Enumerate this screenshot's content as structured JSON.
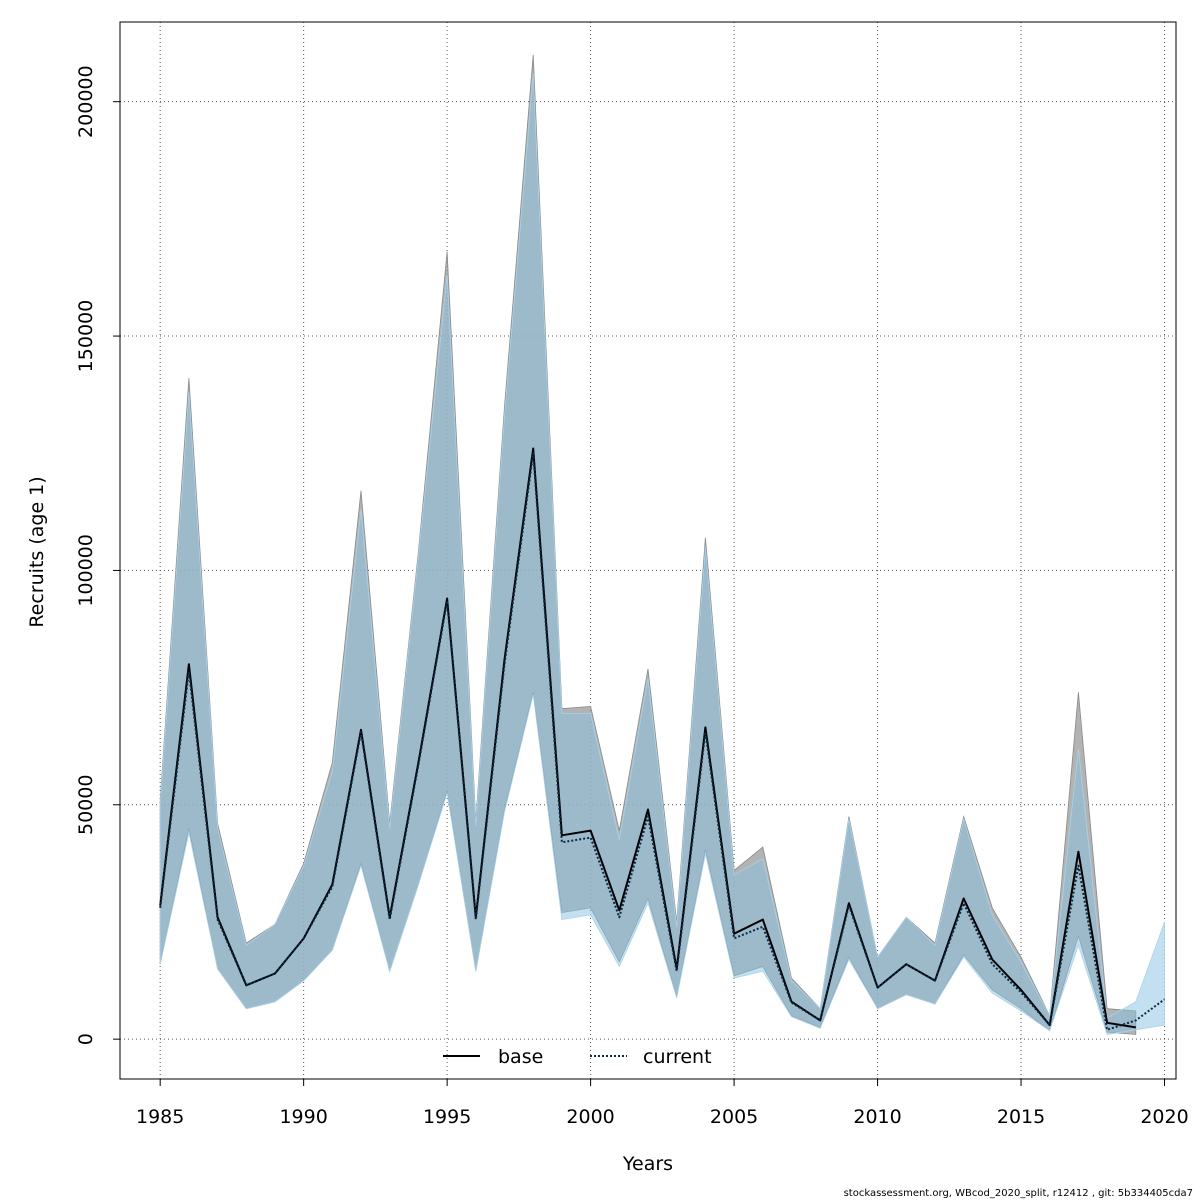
{
  "chart_data": {
    "type": "area",
    "xlabel": "Years",
    "ylabel": "Recruits (age 1)",
    "xlim": [
      1983.6,
      2020.4
    ],
    "ylim": [
      -8500,
      217000
    ],
    "x_ticks": [
      1985,
      1990,
      1995,
      2000,
      2005,
      2010,
      2015,
      2020
    ],
    "x_tick_labels": [
      "1985",
      "1990",
      "1995",
      "2000",
      "2005",
      "2010",
      "2015",
      "2020"
    ],
    "y_ticks": [
      0,
      50000,
      100000,
      150000,
      200000
    ],
    "y_tick_labels": [
      "0",
      "50000",
      "100000",
      "150000",
      "200000"
    ],
    "grid": true,
    "legend_position": "bottom-center",
    "footer": "stockassessment.org, WBcod_2020_split, r12412 , git: 5b334405cda7",
    "series": [
      {
        "name": "base",
        "line_color": "#000000",
        "line_style": "solid",
        "band_color": "#9a9a9a",
        "x": [
          1985,
          1986,
          1987,
          1988,
          1989,
          1990,
          1991,
          1992,
          1993,
          1994,
          1995,
          1996,
          1997,
          1998,
          1999,
          2000,
          2001,
          2002,
          2003,
          2004,
          2005,
          2006,
          2007,
          2008,
          2009,
          2010,
          2011,
          2012,
          2013,
          2014,
          2015,
          2016,
          2017,
          2018,
          2019
        ],
        "values": [
          28500,
          80000,
          26000,
          11500,
          14000,
          21500,
          33000,
          66000,
          26000,
          59000,
          94000,
          26000,
          81000,
          126000,
          43500,
          44500,
          27500,
          49000,
          15000,
          66500,
          22500,
          25500,
          8000,
          4000,
          29000,
          11000,
          16000,
          12500,
          30000,
          17000,
          10500,
          3000,
          40000,
          3500,
          2500
        ],
        "lower": [
          16000,
          45000,
          15000,
          6500,
          8000,
          12500,
          19000,
          37500,
          14500,
          33000,
          53000,
          14500,
          49000,
          74000,
          27000,
          28000,
          16500,
          30000,
          9000,
          40500,
          13500,
          15500,
          5000,
          2500,
          17500,
          6500,
          9500,
          7500,
          18000,
          10500,
          6500,
          1800,
          22000,
          1500,
          1000
        ],
        "upper": [
          51000,
          141000,
          46000,
          20500,
          24500,
          37500,
          59000,
          117000,
          46000,
          104000,
          168000,
          46500,
          135000,
          210000,
          70500,
          71000,
          44500,
          79000,
          25000,
          107000,
          36000,
          41000,
          13000,
          6500,
          47500,
          17500,
          26000,
          20500,
          47500,
          28000,
          17500,
          5000,
          74000,
          6500,
          6000
        ]
      },
      {
        "name": "current",
        "line_color": "#0b2a45",
        "line_style": "dotted",
        "band_color": "#87c1e4",
        "x": [
          1985,
          1986,
          1987,
          1988,
          1989,
          1990,
          1991,
          1992,
          1993,
          1994,
          1995,
          1996,
          1997,
          1998,
          1999,
          2000,
          2001,
          2002,
          2003,
          2004,
          2005,
          2006,
          2007,
          2008,
          2009,
          2010,
          2011,
          2012,
          2013,
          2014,
          2015,
          2016,
          2017,
          2018,
          2019,
          2020
        ],
        "values": [
          28000,
          78500,
          25500,
          11500,
          14000,
          21500,
          32500,
          65500,
          25500,
          58500,
          93500,
          25500,
          80000,
          125000,
          42000,
          43000,
          26000,
          47500,
          14500,
          65500,
          21500,
          24000,
          7800,
          4000,
          28500,
          11000,
          16000,
          12500,
          29000,
          16000,
          10000,
          3000,
          37000,
          2000,
          4000,
          8500
        ],
        "lower": [
          16000,
          44000,
          15000,
          6500,
          8000,
          12500,
          19000,
          37000,
          14500,
          33000,
          52500,
          14500,
          48500,
          73500,
          25500,
          26500,
          15500,
          29000,
          8800,
          39500,
          13000,
          14500,
          4800,
          2300,
          17000,
          6500,
          9500,
          7500,
          17500,
          9800,
          6000,
          1800,
          20000,
          1000,
          2000,
          3000
        ],
        "upper": [
          50000,
          138000,
          45000,
          20000,
          24500,
          37000,
          57000,
          113000,
          45000,
          103000,
          163000,
          45500,
          133000,
          206000,
          69500,
          69500,
          42500,
          77000,
          24000,
          105000,
          35000,
          38500,
          12500,
          6500,
          47000,
          17500,
          26000,
          20000,
          47000,
          26500,
          16500,
          5000,
          62000,
          4500,
          8000,
          25000
        ]
      }
    ]
  }
}
